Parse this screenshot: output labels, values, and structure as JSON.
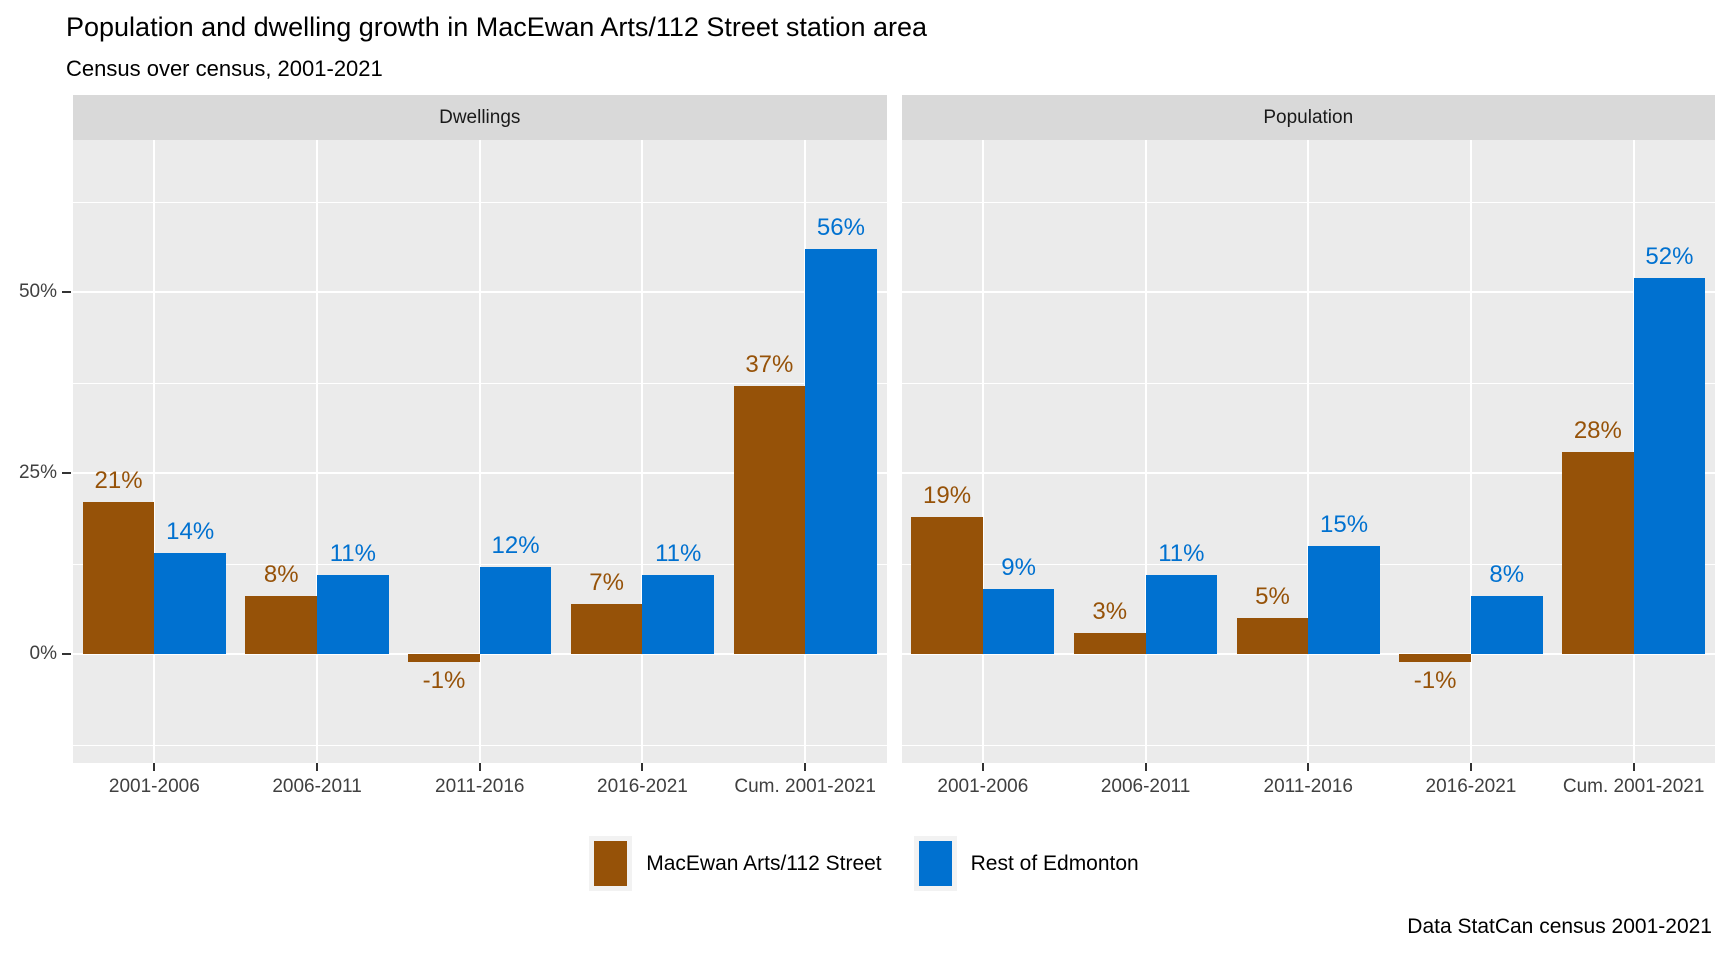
{
  "header": {
    "title": "Population and dwelling growth in MacEwan Arts/112 Street station area",
    "subtitle": "Census over census, 2001-2021"
  },
  "caption": "Data StatCan census 2001-2021",
  "colors": {
    "macewan": "#965208",
    "rest": "#0071D0",
    "panel_bg": "#EBEBEB",
    "strip_bg": "#D9D9D9",
    "grid": "#FFFFFF",
    "axis_text": "#404040",
    "tick_mark": "#333333"
  },
  "legend": {
    "items": [
      {
        "label": "MacEwan Arts/112 Street",
        "color_key": "macewan"
      },
      {
        "label": "Rest of Edmonton",
        "color_key": "rest"
      }
    ]
  },
  "y_axis": {
    "ticks": [
      {
        "value": 0,
        "label": "0%"
      },
      {
        "value": 25,
        "label": "25%"
      },
      {
        "value": 50,
        "label": "50%"
      }
    ]
  },
  "chart_data": {
    "type": "bar",
    "categories": [
      "2001-2006",
      "2006-2011",
      "2011-2016",
      "2016-2021",
      "Cum. 2001-2021"
    ],
    "facets": [
      {
        "label": "Dwellings",
        "series": [
          {
            "name": "MacEwan Arts/112 Street",
            "color_key": "macewan",
            "values": [
              21,
              8,
              -1,
              7,
              37
            ]
          },
          {
            "name": "Rest of Edmonton",
            "color_key": "rest",
            "values": [
              14,
              11,
              12,
              11,
              56
            ]
          }
        ]
      },
      {
        "label": "Population",
        "series": [
          {
            "name": "MacEwan Arts/112 Street",
            "color_key": "macewan",
            "values": [
              19,
              3,
              5,
              -1,
              28
            ]
          },
          {
            "name": "Rest of Edmonton",
            "color_key": "rest",
            "values": [
              9,
              11,
              15,
              8,
              52
            ]
          }
        ]
      }
    ],
    "value_label_format": "percent",
    "title": "Population and dwelling growth in MacEwan Arts/112 Street station area",
    "subtitle": "Census over census, 2001-2021",
    "ylim": [
      -15,
      71
    ],
    "grid": {
      "major": [
        0,
        25,
        50
      ],
      "minor": [
        -12.5,
        12.5,
        37.5,
        62.5
      ],
      "vertical_at_categories": true
    },
    "legend_position": "bottom"
  }
}
